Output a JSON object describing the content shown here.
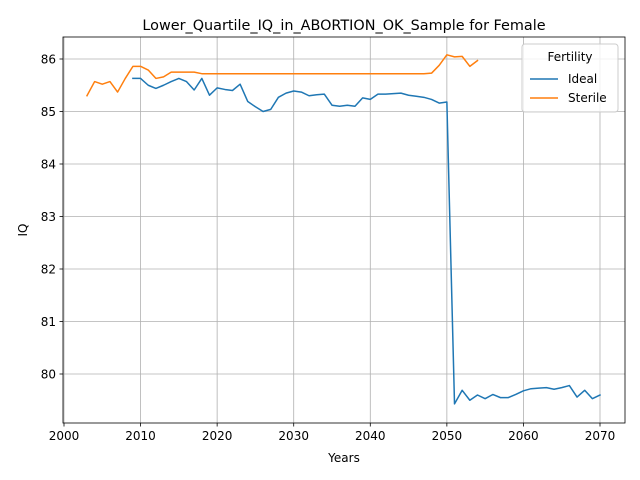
{
  "chart_data": {
    "type": "line",
    "title": "Lower_Quartile_IQ_in_ABORTION_OK_Sample for Female",
    "xlabel": "Years",
    "ylabel": "IQ",
    "xlim": [
      2000,
      2070
    ],
    "ylim": [
      79.5,
      86.0
    ],
    "xticks": [
      2000,
      2010,
      2020,
      2030,
      2040,
      2050,
      2060,
      2070
    ],
    "yticks": [
      80,
      81,
      82,
      83,
      84,
      85,
      86
    ],
    "grid": true,
    "legend": {
      "title": "Fertility",
      "placement": "top-right"
    },
    "colors": {
      "Ideal": "#1f77b4",
      "Sterile": "#ff7f0e"
    },
    "series": [
      {
        "name": "Ideal",
        "x": [
          2009,
          2010,
          2011,
          2012,
          2013,
          2014,
          2015,
          2016,
          2017,
          2018,
          2019,
          2020,
          2021,
          2022,
          2023,
          2024,
          2025,
          2026,
          2027,
          2028,
          2029,
          2030,
          2031,
          2032,
          2033,
          2034,
          2035,
          2036,
          2037,
          2038,
          2039,
          2040,
          2041,
          2042,
          2043,
          2044,
          2045,
          2046,
          2047,
          2048,
          2049,
          2050,
          2051,
          2052,
          2053,
          2054,
          2055,
          2056,
          2057,
          2058,
          2059,
          2060,
          2061,
          2062,
          2063,
          2064,
          2065,
          2066,
          2067,
          2068,
          2069,
          2070
        ],
        "values": [
          85.63,
          85.63,
          85.5,
          85.44,
          85.5,
          85.57,
          85.63,
          85.57,
          85.41,
          85.63,
          85.31,
          85.45,
          85.42,
          85.4,
          85.52,
          85.19,
          85.09,
          85.0,
          85.04,
          85.27,
          85.35,
          85.39,
          85.37,
          85.3,
          85.32,
          85.33,
          85.12,
          85.1,
          85.12,
          85.1,
          85.26,
          85.23,
          85.33,
          85.33,
          85.34,
          85.35,
          85.31,
          85.29,
          85.27,
          85.23,
          85.16,
          85.18,
          79.43,
          79.69,
          79.5,
          79.6,
          79.53,
          79.61,
          79.55,
          79.55,
          79.61,
          79.68,
          79.72,
          79.73,
          79.74,
          79.71,
          79.74,
          79.78,
          79.56,
          79.69,
          79.53,
          79.6
        ]
      },
      {
        "name": "Sterile",
        "x": [
          2003,
          2004,
          2005,
          2006,
          2007,
          2008,
          2009,
          2010,
          2011,
          2012,
          2013,
          2014,
          2015,
          2016,
          2017,
          2018,
          2019,
          2020,
          2021,
          2022,
          2023,
          2024,
          2025,
          2026,
          2027,
          2028,
          2029,
          2030,
          2031,
          2032,
          2033,
          2034,
          2035,
          2036,
          2037,
          2038,
          2039,
          2040,
          2041,
          2042,
          2043,
          2044,
          2045,
          2046,
          2047,
          2048,
          2049,
          2050,
          2051,
          2052,
          2053,
          2054
        ],
        "values": [
          85.3,
          85.57,
          85.52,
          85.57,
          85.37,
          85.63,
          85.86,
          85.86,
          85.79,
          85.63,
          85.66,
          85.75,
          85.75,
          85.75,
          85.75,
          85.72,
          85.72,
          85.72,
          85.72,
          85.72,
          85.72,
          85.72,
          85.72,
          85.72,
          85.72,
          85.72,
          85.72,
          85.72,
          85.72,
          85.72,
          85.72,
          85.72,
          85.72,
          85.72,
          85.72,
          85.72,
          85.72,
          85.72,
          85.72,
          85.72,
          85.72,
          85.72,
          85.72,
          85.72,
          85.72,
          85.73,
          85.88,
          86.08,
          86.04,
          86.05,
          85.86,
          85.97
        ]
      }
    ]
  }
}
